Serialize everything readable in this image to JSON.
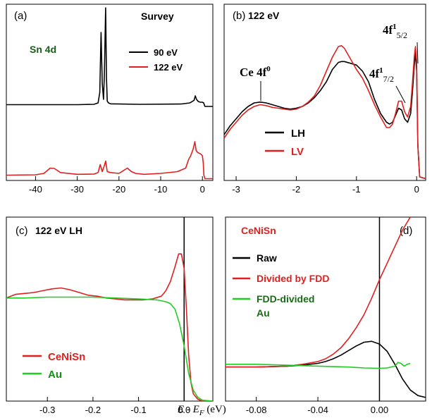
{
  "figure": {
    "xlabel": "E - E",
    "xlabel_sub": "F",
    "xlabel_unit": " (eV)"
  },
  "chart_data": [
    {
      "type": "line",
      "panel": "(a)",
      "title": "Survey",
      "xlim": [
        -47,
        2.5
      ],
      "ylim": [
        0,
        1
      ],
      "xticks": [
        -40,
        -30,
        -20,
        -10,
        0
      ],
      "xtick_labels": [
        "-40",
        "-30",
        "-20",
        "-10",
        "0"
      ],
      "annotations": [
        {
          "text": "Sn 4d",
          "x": -37,
          "color": "#1a5a1a"
        }
      ],
      "legend": "right",
      "series": [
        {
          "name": "90 eV",
          "color": "#000000",
          "x": [
            -47,
            -40,
            -30,
            -26,
            -25,
            -24.6,
            -24.3,
            -24.0,
            -23.7,
            -23.5,
            -23.2,
            -23.0,
            -22.8,
            -22.5,
            -22,
            -15,
            -5,
            -3,
            -2,
            -1.7,
            -1.4,
            -1.0,
            -0.5,
            0,
            0.3,
            0.6,
            2.5
          ],
          "y": [
            0.43,
            0.43,
            0.43,
            0.432,
            0.44,
            0.5,
            0.84,
            0.55,
            0.46,
            0.6,
            0.98,
            0.58,
            0.45,
            0.44,
            0.435,
            0.432,
            0.434,
            0.44,
            0.455,
            0.48,
            0.46,
            0.448,
            0.444,
            0.444,
            0.44,
            0.42,
            0.42
          ]
        },
        {
          "name": "122 eV",
          "color": "#e02020",
          "x": [
            -47,
            -40,
            -38,
            -36.5,
            -35.5,
            -34,
            -30,
            -26,
            -25,
            -24.5,
            -24.0,
            -23.5,
            -23.2,
            -22.8,
            -22,
            -20,
            -19,
            -18,
            -17,
            -16,
            -14,
            -10,
            -6,
            -4,
            -3.3,
            -2.8,
            -2.2,
            -1.8,
            -1.5,
            -1.2,
            -0.8,
            -0.4,
            0,
            0.2,
            0.35,
            0.6,
            2.5
          ],
          "y": [
            0.03,
            0.032,
            0.04,
            0.07,
            0.068,
            0.045,
            0.035,
            0.036,
            0.045,
            0.09,
            0.05,
            0.085,
            0.11,
            0.05,
            0.045,
            0.04,
            0.055,
            0.07,
            0.05,
            0.04,
            0.035,
            0.04,
            0.05,
            0.07,
            0.12,
            0.14,
            0.18,
            0.22,
            0.17,
            0.16,
            0.155,
            0.15,
            0.14,
            0.1,
            0.03,
            0.01,
            0.01
          ]
        }
      ]
    },
    {
      "type": "line",
      "panel": "(b)",
      "title": "122 eV",
      "xlim": [
        -3.2,
        0.15
      ],
      "ylim": [
        0,
        1
      ],
      "xticks": [
        -3,
        -2,
        -1,
        0
      ],
      "xtick_labels": [
        "-3",
        "-2",
        "-1",
        "0"
      ],
      "annotations": [
        {
          "text": "Ce 4f",
          "sup": "0",
          "x": -2.62
        },
        {
          "text": "4f",
          "sup": "1",
          "sub": "7/2",
          "x": -0.27
        },
        {
          "text": "4f",
          "sup": "1",
          "sub": "5/2",
          "x": -0.06
        }
      ],
      "legend": "lower-left",
      "series": [
        {
          "name": "LH",
          "color": "#000000",
          "x": [
            -3.2,
            -3.1,
            -3.0,
            -2.9,
            -2.8,
            -2.7,
            -2.6,
            -2.5,
            -2.4,
            -2.3,
            -2.2,
            -2.1,
            -2.0,
            -1.9,
            -1.8,
            -1.7,
            -1.6,
            -1.5,
            -1.4,
            -1.3,
            -1.25,
            -1.2,
            -1.1,
            -1.0,
            -0.9,
            -0.8,
            -0.7,
            -0.6,
            -0.5,
            -0.45,
            -0.4,
            -0.35,
            -0.3,
            -0.25,
            -0.2,
            -0.15,
            -0.1,
            -0.07,
            -0.04,
            -0.02,
            0.0,
            0.02,
            0.05,
            0.15
          ],
          "y": [
            0.26,
            0.31,
            0.35,
            0.39,
            0.42,
            0.44,
            0.445,
            0.44,
            0.43,
            0.42,
            0.41,
            0.405,
            0.41,
            0.42,
            0.44,
            0.47,
            0.51,
            0.56,
            0.63,
            0.67,
            0.675,
            0.675,
            0.665,
            0.655,
            0.62,
            0.56,
            0.46,
            0.38,
            0.33,
            0.32,
            0.33,
            0.37,
            0.41,
            0.4,
            0.35,
            0.33,
            0.38,
            0.5,
            0.65,
            0.73,
            0.62,
            0.2,
            0.02,
            0.01
          ]
        },
        {
          "name": "LV",
          "color": "#e02020",
          "x": [
            -3.2,
            -3.1,
            -3.0,
            -2.9,
            -2.8,
            -2.7,
            -2.6,
            -2.5,
            -2.4,
            -2.3,
            -2.2,
            -2.1,
            -2.0,
            -1.9,
            -1.8,
            -1.7,
            -1.6,
            -1.5,
            -1.4,
            -1.3,
            -1.25,
            -1.2,
            -1.1,
            -1.0,
            -0.9,
            -0.8,
            -0.7,
            -0.6,
            -0.5,
            -0.45,
            -0.4,
            -0.35,
            -0.3,
            -0.25,
            -0.2,
            -0.15,
            -0.1,
            -0.07,
            -0.04,
            -0.02,
            0.0,
            0.02,
            0.05,
            0.15
          ],
          "y": [
            0.24,
            0.29,
            0.33,
            0.37,
            0.4,
            0.42,
            0.43,
            0.425,
            0.415,
            0.41,
            0.405,
            0.4,
            0.405,
            0.42,
            0.445,
            0.48,
            0.54,
            0.62,
            0.7,
            0.76,
            0.765,
            0.75,
            0.69,
            0.63,
            0.58,
            0.51,
            0.43,
            0.36,
            0.3,
            0.3,
            0.32,
            0.38,
            0.45,
            0.45,
            0.39,
            0.36,
            0.42,
            0.55,
            0.7,
            0.76,
            0.68,
            0.2,
            0.02,
            0.01
          ]
        }
      ]
    },
    {
      "type": "line",
      "panel": "(c)",
      "title": "122 eV LH",
      "xlim": [
        -0.39,
        0.063
      ],
      "ylim": [
        0,
        1
      ],
      "xticks": [
        -0.3,
        -0.2,
        -0.1,
        0.0
      ],
      "xtick_labels": [
        "-0.3",
        "-0.2",
        "-0.1",
        "0.0"
      ],
      "vline": 0.0,
      "legend": "lower-left",
      "series": [
        {
          "name": "CeNiSn",
          "color": "#e02020",
          "x": [
            -0.39,
            -0.37,
            -0.35,
            -0.33,
            -0.31,
            -0.29,
            -0.27,
            -0.25,
            -0.23,
            -0.21,
            -0.19,
            -0.17,
            -0.15,
            -0.13,
            -0.11,
            -0.09,
            -0.07,
            -0.05,
            -0.04,
            -0.03,
            -0.02,
            -0.012,
            -0.006,
            0.0,
            0.005,
            0.01,
            0.015,
            0.02,
            0.03,
            0.04,
            0.063
          ],
          "y": [
            0.56,
            0.58,
            0.585,
            0.59,
            0.6,
            0.61,
            0.615,
            0.605,
            0.59,
            0.575,
            0.57,
            0.56,
            0.555,
            0.55,
            0.55,
            0.55,
            0.555,
            0.57,
            0.6,
            0.65,
            0.73,
            0.8,
            0.8,
            0.72,
            0.5,
            0.25,
            0.1,
            0.04,
            0.01,
            0.0,
            0.0
          ]
        },
        {
          "name": "Au",
          "color": "#22cc22",
          "x": [
            -0.39,
            -0.35,
            -0.3,
            -0.25,
            -0.2,
            -0.15,
            -0.1,
            -0.06,
            -0.04,
            -0.03,
            -0.02,
            -0.01,
            0.0,
            0.01,
            0.02,
            0.03,
            0.04,
            0.063
          ],
          "y": [
            0.56,
            0.56,
            0.565,
            0.565,
            0.565,
            0.56,
            0.555,
            0.55,
            0.54,
            0.53,
            0.5,
            0.42,
            0.3,
            0.15,
            0.06,
            0.02,
            0.005,
            0.0
          ]
        }
      ]
    },
    {
      "type": "line",
      "panel": "(d)",
      "title": "CeNiSn",
      "xlim": [
        -0.1,
        0.03
      ],
      "ylim": [
        0,
        1
      ],
      "xticks": [
        -0.08,
        -0.04,
        0.0
      ],
      "xtick_labels": [
        "-0.08",
        "-0.04",
        "0.00"
      ],
      "vline": 0.0,
      "legend": "upper-left",
      "series": [
        {
          "name": "Raw",
          "color": "#000000",
          "x": [
            -0.1,
            -0.08,
            -0.06,
            -0.05,
            -0.04,
            -0.035,
            -0.03,
            -0.025,
            -0.02,
            -0.015,
            -0.01,
            -0.005,
            0.0,
            0.005,
            0.01,
            0.015,
            0.02,
            0.025,
            0.03
          ],
          "y": [
            0.185,
            0.185,
            0.19,
            0.195,
            0.205,
            0.215,
            0.23,
            0.25,
            0.275,
            0.3,
            0.32,
            0.325,
            0.31,
            0.27,
            0.2,
            0.12,
            0.06,
            0.03,
            0.02
          ]
        },
        {
          "name": "Divided by FDD",
          "color": "#e02020",
          "x": [
            -0.1,
            -0.08,
            -0.06,
            -0.05,
            -0.04,
            -0.035,
            -0.03,
            -0.025,
            -0.02,
            -0.015,
            -0.01,
            -0.005,
            0.0,
            0.005,
            0.01,
            0.015,
            0.02
          ],
          "y": [
            0.185,
            0.185,
            0.19,
            0.2,
            0.215,
            0.23,
            0.255,
            0.29,
            0.34,
            0.4,
            0.47,
            0.56,
            0.66,
            0.75,
            0.84,
            0.93,
            1.0
          ]
        },
        {
          "name": "FDD-divided Au",
          "color": "#22cc22",
          "x": [
            -0.1,
            -0.08,
            -0.06,
            -0.04,
            -0.02,
            -0.01,
            0.0,
            0.005,
            0.01,
            0.012,
            0.014,
            0.016,
            0.018,
            0.02
          ],
          "y": [
            0.2,
            0.2,
            0.195,
            0.19,
            0.185,
            0.18,
            0.178,
            0.18,
            0.19,
            0.21,
            0.205,
            0.19,
            0.2,
            0.205
          ]
        }
      ]
    }
  ]
}
